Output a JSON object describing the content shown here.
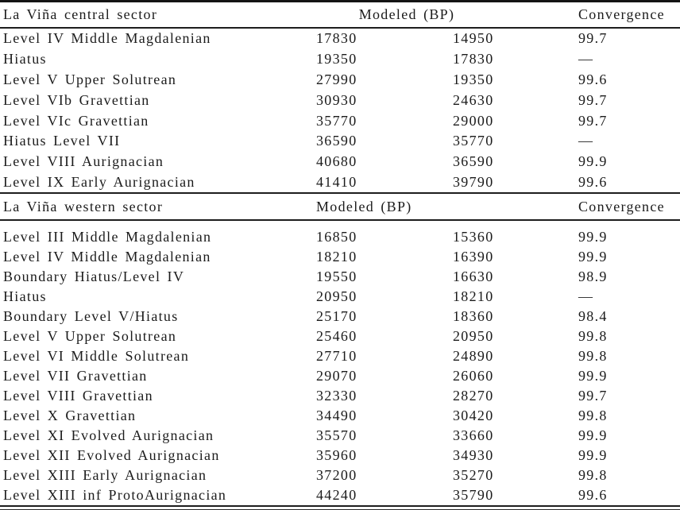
{
  "table": {
    "sections": [
      {
        "title": "La Viña central sector",
        "modeled_header": "Modeled (BP)",
        "convergence_header": "Convergence",
        "rows": [
          {
            "label": "Level IV Middle Magdalenian",
            "modeled_from": "17830",
            "modeled_to": "14950",
            "convergence": "99.7"
          },
          {
            "label": "Hiatus",
            "modeled_from": "19350",
            "modeled_to": "17830",
            "convergence": "—"
          },
          {
            "label": "Level V Upper Solutrean",
            "modeled_from": "27990",
            "modeled_to": "19350",
            "convergence": "99.6"
          },
          {
            "label": "Level VIb Gravettian",
            "modeled_from": "30930",
            "modeled_to": "24630",
            "convergence": "99.7"
          },
          {
            "label": "Level VIc Gravettian",
            "modeled_from": "35770",
            "modeled_to": "29000",
            "convergence": "99.7"
          },
          {
            "label": "Hiatus Level VII",
            "modeled_from": "36590",
            "modeled_to": "35770",
            "convergence": "—"
          },
          {
            "label": "Level VIII Aurignacian",
            "modeled_from": "40680",
            "modeled_to": "36590",
            "convergence": "99.9"
          },
          {
            "label": "Level IX Early Aurignacian",
            "modeled_from": "41410",
            "modeled_to": "39790",
            "convergence": "99.6"
          }
        ]
      },
      {
        "title": "La Viña western sector",
        "modeled_header": "Modeled (BP)",
        "convergence_header": "Convergence",
        "rows": [
          {
            "label": "Level III Middle Magdalenian",
            "modeled_from": "16850",
            "modeled_to": "15360",
            "convergence": "99.9"
          },
          {
            "label": "Level IV Middle Magdalenian",
            "modeled_from": "18210",
            "modeled_to": "16390",
            "convergence": "99.9"
          },
          {
            "label": "Boundary Hiatus/Level IV",
            "modeled_from": "19550",
            "modeled_to": "16630",
            "convergence": "98.9"
          },
          {
            "label": "Hiatus",
            "modeled_from": "20950",
            "modeled_to": "18210",
            "convergence": "—"
          },
          {
            "label": "Boundary Level V/Hiatus",
            "modeled_from": "25170",
            "modeled_to": "18360",
            "convergence": "98.4"
          },
          {
            "label": "Level V Upper Solutrean",
            "modeled_from": "25460",
            "modeled_to": "20950",
            "convergence": "99.8"
          },
          {
            "label": "Level VI Middle Solutrean",
            "modeled_from": "27710",
            "modeled_to": "24890",
            "convergence": "99.8"
          },
          {
            "label": "Level VII Gravettian",
            "modeled_from": "29070",
            "modeled_to": "26060",
            "convergence": "99.9"
          },
          {
            "label": "Level VIII Gravettian",
            "modeled_from": "32330",
            "modeled_to": "28270",
            "convergence": "99.7"
          },
          {
            "label": "Level X Gravettian",
            "modeled_from": "34490",
            "modeled_to": "30420",
            "convergence": "99.8"
          },
          {
            "label": "Level XI Evolved Aurignacian",
            "modeled_from": "35570",
            "modeled_to": "33660",
            "convergence": "99.9"
          },
          {
            "label": "Level XII Evolved Aurignacian",
            "modeled_from": "35960",
            "modeled_to": "34930",
            "convergence": "99.9"
          },
          {
            "label": "Level XIII Early Aurignacian",
            "modeled_from": "37200",
            "modeled_to": "35270",
            "convergence": "99.8"
          },
          {
            "label": "Level XIII inf ProtoAurignacian",
            "modeled_from": "44240",
            "modeled_to": "35790",
            "convergence": "99.6"
          }
        ]
      }
    ]
  }
}
